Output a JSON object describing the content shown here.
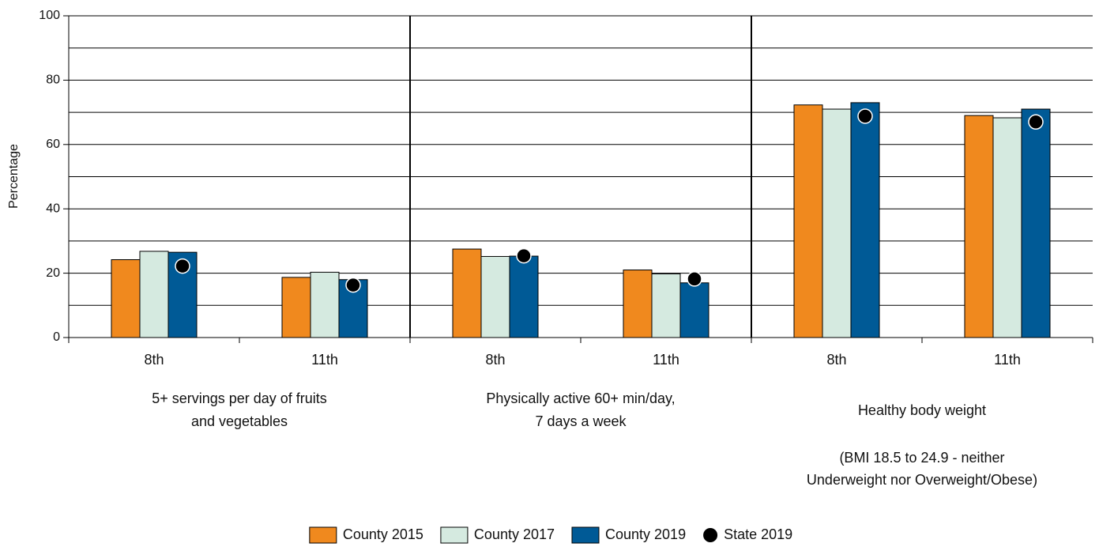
{
  "chart_data": {
    "type": "bar",
    "y_label": "Percentage",
    "ylim": [
      0,
      100
    ],
    "yticks": [
      0,
      20,
      40,
      60,
      80,
      100
    ],
    "minor_gridlines": [
      10,
      30,
      50,
      70,
      90
    ],
    "grid": true,
    "categories": [
      "8th",
      "11th",
      "8th",
      "11th",
      "8th",
      "11th"
    ],
    "groups": [
      {
        "label": [
          "5+ servings per day of fruits",
          "and vegetables"
        ]
      },
      {
        "label": [
          "Physically active 60+ min/day,",
          "7 days a week"
        ]
      },
      {
        "label": [
          "Healthy body weight"
        ],
        "note": [
          "(BMI 18.5 to 24.9 - neither",
          "Underweight nor Overweight/Obese)"
        ]
      }
    ],
    "series": [
      {
        "name": "County 2015",
        "color": "#f0891e",
        "values": [
          24.2,
          18.7,
          27.5,
          21.0,
          72.3,
          69.0
        ]
      },
      {
        "name": "County 2017",
        "color": "#d5eae0",
        "values": [
          26.8,
          20.3,
          25.2,
          19.8,
          71.0,
          68.3
        ]
      },
      {
        "name": "County 2019",
        "color": "#005a96",
        "values": [
          26.5,
          18.0,
          25.3,
          17.0,
          73.0,
          71.0
        ]
      },
      {
        "name": "State 2019",
        "color": "#000000",
        "marker": "dot",
        "values": [
          22.2,
          16.3,
          25.4,
          18.2,
          68.8,
          67.0
        ]
      }
    ],
    "legend": "bottom"
  }
}
